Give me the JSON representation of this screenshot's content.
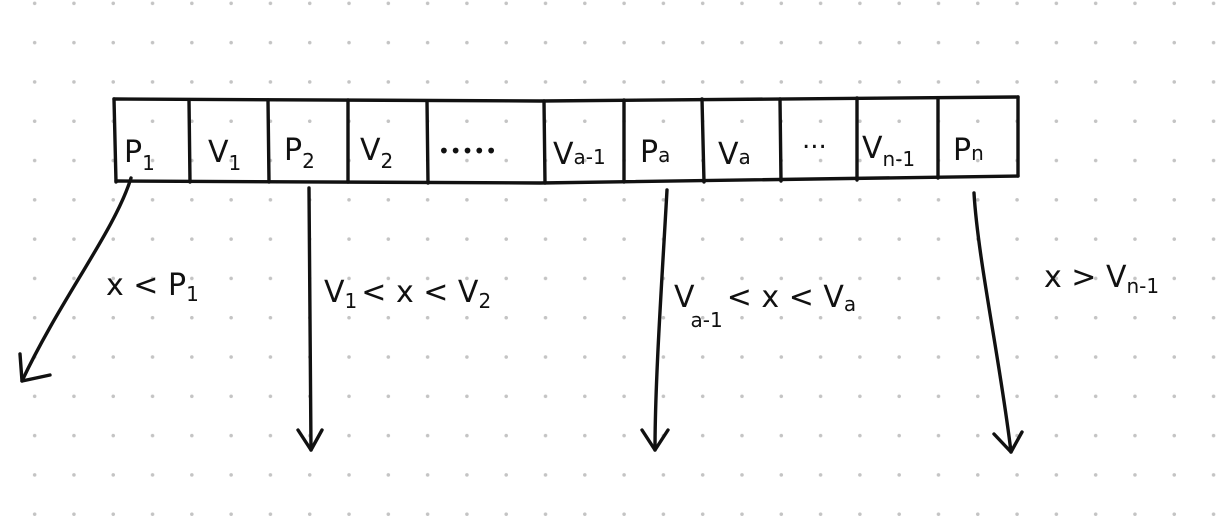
{
  "cells": [
    {
      "main": "P",
      "sub": "1"
    },
    {
      "main": "V",
      "sub": "1"
    },
    {
      "main": "P",
      "sub": "2"
    },
    {
      "main": "V",
      "sub": "2"
    },
    {
      "main": "•••••",
      "sub": ""
    },
    {
      "main": "V",
      "sub": "a-1"
    },
    {
      "main": "P",
      "sub": "a"
    },
    {
      "main": "V",
      "sub": "a"
    },
    {
      "main": "...",
      "sub": ""
    },
    {
      "main": "V",
      "sub": "n-1"
    },
    {
      "main": "P",
      "sub": "n"
    }
  ],
  "conditions": [
    {
      "pre": "x < P",
      "sub": "1",
      "post": ""
    },
    {
      "pre": "V",
      "sub": "1",
      "post": "< x < V",
      "sub2": "2"
    },
    {
      "pre": "V",
      "sub": "a-1",
      "post": "< x < V",
      "sub2": "a"
    },
    {
      "pre": "x > V",
      "sub": "n-1",
      "post": ""
    }
  ]
}
